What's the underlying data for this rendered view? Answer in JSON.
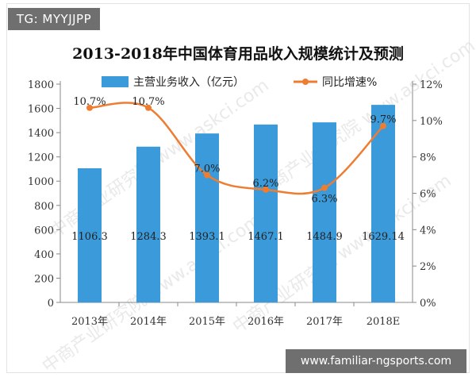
{
  "badges": {
    "top_left": "TG: MYYJJPP",
    "bottom_right": "www.familiar-ngsports.com"
  },
  "watermark_text": "中商产业研究院 www.askci.com",
  "colors": {
    "bar": "#3b9ad9",
    "line": "#ee7d31",
    "axis": "#888888"
  },
  "chart_data": {
    "type": "bar",
    "title": "2013-2018年中国体育用品收入规模统计及预测",
    "categories": [
      "2013年",
      "2014年",
      "2015年",
      "2016年",
      "2017年",
      "2018E"
    ],
    "series": [
      {
        "name": "主营业务收入（亿元）",
        "type": "bar",
        "axis": "left",
        "values": [
          1106.3,
          1284.3,
          1393.1,
          1467.1,
          1484.9,
          1629.14
        ],
        "labels": [
          "1106.3",
          "1284.3",
          "1393.1",
          "1467.1",
          "1484.9",
          "1629.14"
        ]
      },
      {
        "name": "同比增速%",
        "type": "line",
        "axis": "right",
        "values": [
          10.7,
          10.7,
          7.0,
          6.2,
          6.3,
          9.7
        ],
        "labels": [
          "10.7%",
          "10.7%",
          "7.0%",
          "6.2%",
          "6.3%",
          "9.7%"
        ]
      }
    ],
    "y_left": {
      "min": 0,
      "max": 1800,
      "ticks": [
        "0",
        "200",
        "400",
        "600",
        "800",
        "1000",
        "1200",
        "1400",
        "1600",
        "1800"
      ]
    },
    "y_right": {
      "min": 0,
      "max": 12,
      "ticks": [
        "0%",
        "2%",
        "4%",
        "6%",
        "8%",
        "10%",
        "12%"
      ]
    },
    "grid": false,
    "legend_position": "top"
  }
}
